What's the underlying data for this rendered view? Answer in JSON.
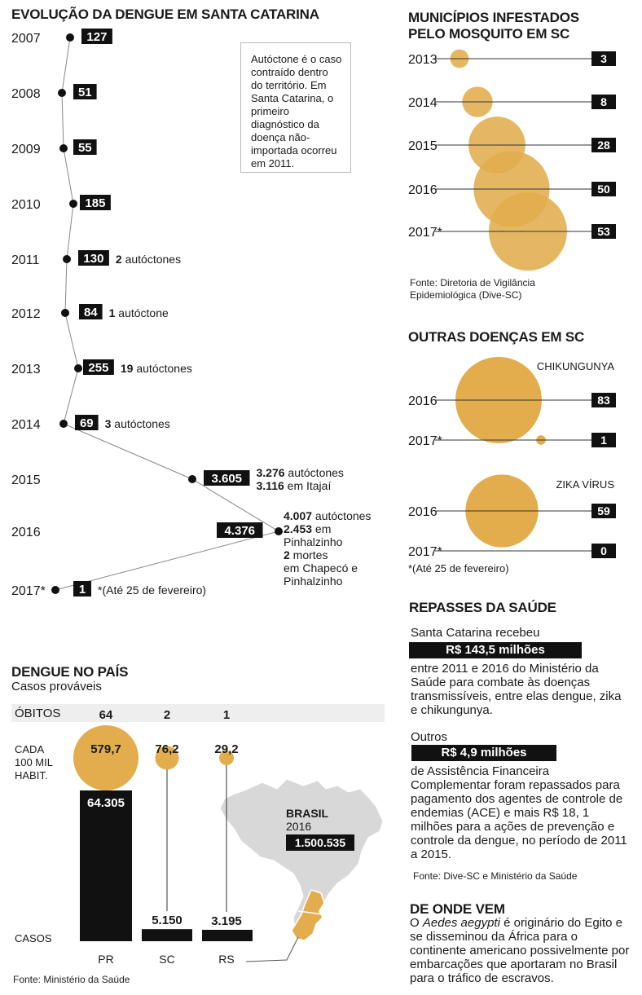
{
  "colors": {
    "gold": "#E3AD4D",
    "gold_overlap": "#D9822B",
    "black": "#111111",
    "panel_gray": "#EEEEEE"
  },
  "left_title": "EVOLUÇÃO DA DENGUE EM SANTA CATARINA",
  "note_box": "Autóctone é o caso contraído dentro do território. Em Santa Catarina, o primeiro diagnóstico da doença não-importada ocorreu em 2011.",
  "dengue_timeline": {
    "rows": [
      {
        "year": "2007",
        "value": "127",
        "notes": []
      },
      {
        "year": "2008",
        "value": "51",
        "notes": []
      },
      {
        "year": "2009",
        "value": "55",
        "notes": []
      },
      {
        "year": "2010",
        "value": "185",
        "notes": []
      },
      {
        "year": "2011",
        "value": "130",
        "notes": [
          {
            "num": "2",
            "text": " autóctones"
          }
        ]
      },
      {
        "year": "2012",
        "value": "84",
        "notes": [
          {
            "num": "1",
            "text": " autóctone"
          }
        ]
      },
      {
        "year": "2013",
        "value": "255",
        "notes": [
          {
            "num": "19",
            "text": " autóctones"
          }
        ]
      },
      {
        "year": "2014",
        "value": "69",
        "notes": [
          {
            "num": "3",
            "text": " autóctones"
          }
        ]
      },
      {
        "year": "2015",
        "value": "3.605",
        "notes": [
          {
            "num": "3.276",
            "text": " autóctones"
          },
          {
            "num": "3.116",
            "text": " em Itajaí"
          }
        ]
      },
      {
        "year": "2016",
        "value": "4.376",
        "notes": [
          {
            "num": "4.007",
            "text": " autóctones"
          },
          {
            "num": "2.453",
            "text": " em"
          },
          {
            "num": "",
            "text": "Pinhalzinho"
          },
          {
            "num": "2",
            "text": " mortes"
          },
          {
            "num": "",
            "text": "em Chapecó e"
          },
          {
            "num": "",
            "text": "Pinhalzinho"
          }
        ]
      },
      {
        "year": "2017*",
        "value": "1",
        "notes": [
          {
            "num": "",
            "text": "*(Até 25 de fevereiro)"
          }
        ]
      }
    ]
  },
  "mun_title_1": "MUNICÍPIOS INFESTADOS",
  "mun_title_2": "PELO MOSQUITO EM SC",
  "mun_source_1": "Fonte: Diretoria de Vigilância",
  "mun_source_2": "Epidemiológica (Dive-SC)",
  "outras_title": "OUTRAS DOENÇAS EM SC",
  "outras_footnote": "*(Até 25 de fevereiro)",
  "repasses": {
    "title": "REPASSES DA SAÚDE",
    "intro": "Santa Catarina recebeu",
    "amount1": "R$ 143,5 milhões",
    "text1": "entre 2011 e 2016 do Ministério da Saúde para combate às doenças transmissíveis, entre elas dengue, zika e chikungunya.",
    "intro2": "Outros",
    "amount2": "R$ 4,9 milhões",
    "text2": "de Assistência Financeira Complementar foram repassados para pagamento dos agentes de controle de endemias (ACE) e mais R$ 18, 1 milhões para a ações de prevenção e controle da dengue, no período de 2011 a 2015.",
    "source": "Fonte: Dive-SC e Ministério da Saúde"
  },
  "de_onde": {
    "title": "DE ONDE VEM",
    "text_pre": "O ",
    "text_italic": "Aedes aegypti",
    "text_post": " é originário do Egito e se disseminou da África para o continente americano possivelmente por embarcações que aportaram no Brasil para o tráfico de escravos."
  },
  "pais": {
    "title": "DENGUE NO PAÍS",
    "subtitle": "Casos prováveis",
    "obitos_label": "ÓBITOS",
    "per100k_label_1": "CADA",
    "per100k_label_2": "100 MIL",
    "per100k_label_3": "HABIT.",
    "casos_label": "CASOS",
    "brasil_label": "BRASIL",
    "brasil_year": "2016",
    "brasil_value": "1.500.535",
    "source": "Fonte: Ministério da Saúde"
  },
  "chart_data": [
    {
      "type": "line",
      "title": "EVOLUÇÃO DA DENGUE EM SANTA CATARINA",
      "x": [
        "2007",
        "2008",
        "2009",
        "2010",
        "2011",
        "2012",
        "2013",
        "2014",
        "2015",
        "2016",
        "2017*"
      ],
      "values": [
        127,
        51,
        55,
        185,
        130,
        84,
        255,
        69,
        3605,
        4376,
        1
      ]
    },
    {
      "type": "scatter",
      "title": "MUNICÍPIOS INFESTADOS PELO MOSQUITO EM SC",
      "categories": [
        "2013",
        "2014",
        "2015",
        "2016",
        "2017*"
      ],
      "values": [
        3,
        8,
        28,
        50,
        53
      ],
      "labels": [
        "3",
        "8",
        "28",
        "50",
        "53"
      ]
    },
    {
      "type": "scatter",
      "title": "OUTRAS DOENÇAS EM SC",
      "series": [
        {
          "name": "CHIKUNGUNYA",
          "categories": [
            "2016",
            "2017*"
          ],
          "values": [
            83,
            1
          ],
          "labels": [
            "83",
            "1"
          ]
        },
        {
          "name": "ZIKA VÍRUS",
          "categories": [
            "2016",
            "2017*"
          ],
          "values": [
            59,
            0
          ],
          "labels": [
            "59",
            "0"
          ]
        }
      ]
    },
    {
      "type": "bar",
      "title": "DENGUE NO PAÍS",
      "categories": [
        "PR",
        "SC",
        "RS"
      ],
      "casos": [
        64305,
        5150,
        3195
      ],
      "casos_labels": [
        "64.305",
        "5.150",
        "3.195"
      ],
      "per100k": [
        579.7,
        76.2,
        29.2
      ],
      "per100k_labels": [
        "579,7",
        "76,2",
        "29,2"
      ],
      "obitos": [
        "64",
        "2",
        "1"
      ]
    }
  ]
}
